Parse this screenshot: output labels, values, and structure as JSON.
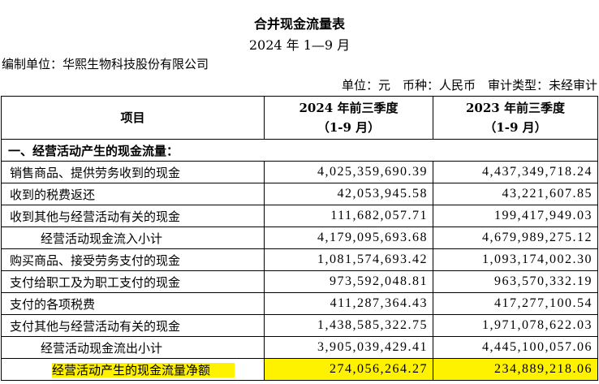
{
  "header": {
    "title": "合并现金流量表",
    "period": "2024 年 1—9 月",
    "company": "编制单位：华熙生物科技股份有限公司",
    "units": "单位：元　币种：人民币　审计类型：未经审计"
  },
  "table": {
    "columns": [
      "项目",
      "2024 年前三季度",
      "2023 年前三季度"
    ],
    "column_notes": [
      "（1-9 月）",
      "（1-9 月）"
    ],
    "section": "一、经营活动产生的现金流量：",
    "rows": [
      [
        "销售商品、提供劳务收到的现金",
        "4,025,359,690.39",
        "4,437,349,718.24"
      ],
      [
        "收到的税费返还",
        "42,053,945.58",
        "43,221,607.85"
      ],
      [
        "收到其他与经营活动有关的现金",
        "111,682,057.71",
        "199,417,949.03"
      ],
      [
        "经营活动现金流入小计",
        "4,179,095,693.68",
        "4,679,989,275.12"
      ],
      [
        "购买商品、接受劳务支付的现金",
        "1,081,574,693.42",
        "1,093,174,002.30"
      ],
      [
        "支付给职工及为职工支付的现金",
        "973,592,048.81",
        "963,570,332.19"
      ],
      [
        "支付的各项税费",
        "411,287,364.43",
        "417,277,100.54"
      ],
      [
        "支付其他与经营活动有关的现金",
        "1,438,585,322.75",
        "1,971,078,622.03"
      ],
      [
        "经营活动现金流出小计",
        "3,905,039,429.41",
        "4,445,100,057.06"
      ],
      [
        "经营活动产生的现金流量净额",
        "274,056,264.27",
        "234,889,218.06"
      ]
    ]
  }
}
